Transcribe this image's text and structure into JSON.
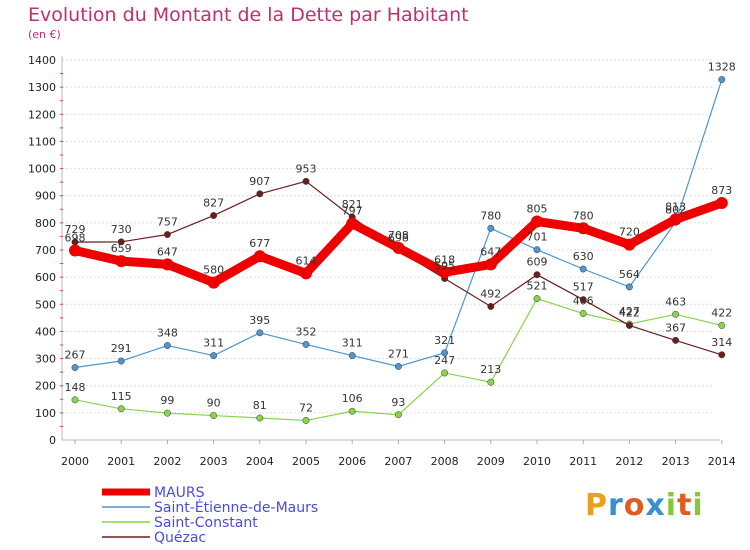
{
  "header": {
    "title": "Evolution du Montant de la Dette par Habitant",
    "subtitle": "(en €)"
  },
  "logo": {
    "text": "Proxiti"
  },
  "chart_data": {
    "type": "line",
    "title": "Evolution du Montant de la Dette par Habitant",
    "subtitle": "(en €)",
    "xlabel": "",
    "ylabel": "",
    "x": [
      "2000",
      "2001",
      "2002",
      "2003",
      "2004",
      "2005",
      "2006",
      "2007",
      "2008",
      "2009",
      "2010",
      "2011",
      "2012",
      "2013",
      "2014"
    ],
    "ylim": [
      0,
      1400
    ],
    "yticks": [
      "0",
      "100",
      "200",
      "300",
      "400",
      "500",
      "600",
      "700",
      "800",
      "900",
      "1000",
      "1100",
      "1200",
      "1300",
      "1400"
    ],
    "grid": "horizontal",
    "legend_position": "bottom-left",
    "series": [
      {
        "name": "MAURS",
        "color": "#ee0000",
        "values": [
          698,
          659,
          647,
          580,
          677,
          614,
          797,
          708,
          618,
          647,
          805,
          780,
          720,
          813,
          873
        ],
        "labels": [
          "698",
          "659",
          "647",
          "580",
          "677",
          "614",
          "797",
          "708",
          "618",
          "647",
          "805",
          "780",
          "720",
          "813",
          "873"
        ]
      },
      {
        "name": "Saint-Étienne-de-Maurs",
        "color": "#4f95cf",
        "values": [
          267,
          291,
          348,
          311,
          395,
          352,
          311,
          271,
          321,
          780,
          701,
          630,
          564,
          802,
          1328
        ],
        "labels": [
          "267",
          "291",
          "348",
          "311",
          "395",
          "352",
          "311",
          "271",
          "321",
          "780",
          "701",
          "630",
          "564",
          "802",
          "1328"
        ]
      },
      {
        "name": "Saint-Constant",
        "color": "#88d44a",
        "values": [
          148,
          115,
          99,
          90,
          81,
          72,
          106,
          93,
          247,
          213,
          521,
          466,
          427,
          463,
          422
        ],
        "labels": [
          "148",
          "115",
          "99",
          "90",
          "81",
          "72",
          "106",
          "93",
          "247",
          "213",
          "521",
          "466",
          "427",
          "463",
          "422"
        ]
      },
      {
        "name": "Quézac",
        "color": "#6b1e1e",
        "values": [
          729,
          730,
          757,
          827,
          907,
          953,
          821,
          698,
          595,
          492,
          609,
          517,
          422,
          367,
          314
        ],
        "labels": [
          "729",
          "730",
          "757",
          "827",
          "907",
          "953",
          "821",
          "698",
          "595",
          "492",
          "609",
          "517",
          "422",
          "367",
          "314"
        ]
      }
    ]
  }
}
